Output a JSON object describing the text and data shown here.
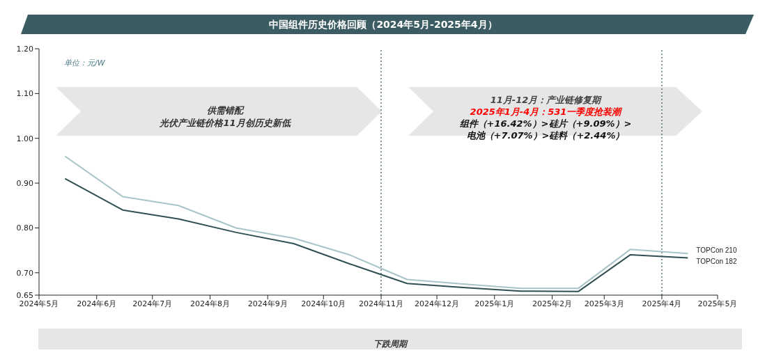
{
  "chart_data": {
    "type": "line",
    "title": "中国组件历史价格回顾（2024年5月-2025年4月）",
    "x": [
      "2024-05-15",
      "2024-06-15",
      "2024-07-15",
      "2024-08-15",
      "2024-09-15",
      "2024-10-15",
      "2024-11-15",
      "2024-12-15",
      "2025-01-15",
      "2025-02-15",
      "2025-03-15",
      "2025-04-15"
    ],
    "series": [
      {
        "name": "TOPCon 210",
        "color": "#a9c4c9",
        "values": [
          0.96,
          0.87,
          0.85,
          0.8,
          0.777,
          0.74,
          0.685,
          0.675,
          0.665,
          0.665,
          0.752,
          0.743
        ]
      },
      {
        "name": "TOPCon 182",
        "color": "#2f4f52",
        "values": [
          0.91,
          0.84,
          0.82,
          0.79,
          0.765,
          0.72,
          0.676,
          0.667,
          0.659,
          0.658,
          0.74,
          0.733
        ]
      }
    ],
    "xlim": [
      "2024-05",
      "2025-05"
    ],
    "xticks": [
      {
        "value": "2024-05",
        "label": "2024年5月"
      },
      {
        "value": "2024-06",
        "label": "2024年6月"
      },
      {
        "value": "2024-07",
        "label": "2024年7月"
      },
      {
        "value": "2024-08",
        "label": "2024年8月"
      },
      {
        "value": "2024-09",
        "label": "2024年9月"
      },
      {
        "value": "2024-10",
        "label": "2024年10月"
      },
      {
        "value": "2024-11",
        "label": "2024年11月"
      },
      {
        "value": "2024-12",
        "label": "2024年12月"
      },
      {
        "value": "2025-01",
        "label": "2025年1月"
      },
      {
        "value": "2025-02",
        "label": "2025年2月"
      },
      {
        "value": "2025-03",
        "label": "2025年3月"
      },
      {
        "value": "2025-04",
        "label": "2025年4月"
      },
      {
        "value": "2025-05",
        "label": "2025年5月"
      }
    ],
    "ylim": [
      0.65,
      1.2
    ],
    "yticks": [
      {
        "value": 0.65,
        "label": "0.65"
      },
      {
        "value": 0.7,
        "label": "0.70"
      },
      {
        "value": 0.8,
        "label": "0.80"
      },
      {
        "value": 0.9,
        "label": "0.90"
      },
      {
        "value": 1.0,
        "label": "1.00"
      },
      {
        "value": 1.1,
        "label": "1.10"
      },
      {
        "value": 1.2,
        "label": "1.20"
      }
    ],
    "ref_lines": [
      {
        "axis": "x",
        "value": "2024-11",
        "color": "#2f4f52",
        "line_style": "dotted"
      },
      {
        "axis": "x",
        "value": "2025-04",
        "color": "#2f4f52",
        "line_style": "dotted"
      }
    ],
    "annotations": [
      "单位：元/W",
      "供需错配",
      "光伏产业链价格11月创历史新低",
      "11月-12月：产业链修复期",
      "2025年1月-4月：531一季度抢装潮",
      "组件（+16.42%）>硅片（+9.09%）>",
      "电池（+7.07%）>硅料（+2.44%）",
      "下跌周期"
    ],
    "grid": false,
    "legend": false,
    "marker": "none",
    "line_style": "solid"
  }
}
